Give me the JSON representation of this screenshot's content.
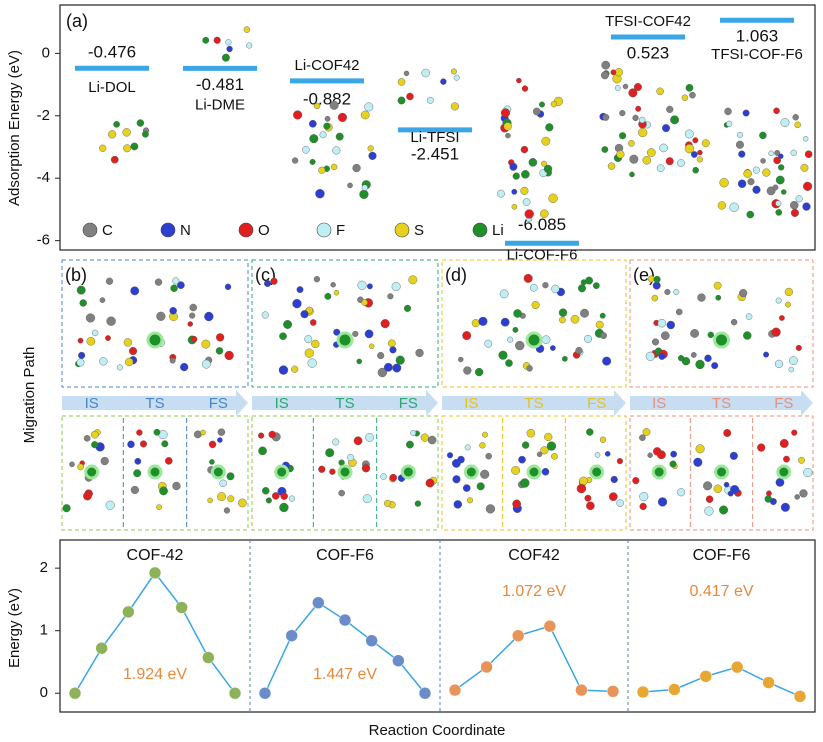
{
  "chart_data": [
    {
      "type": "level",
      "ylabel": "Adsorption Energy (eV)",
      "panel": "(a)",
      "categories": [
        "Li-DOL",
        "Li-DME",
        "Li-COF42",
        "Li-TFSI",
        "Li-COF-F6",
        "TFSI-COF42",
        "TFSI-COF-F6"
      ],
      "values": [
        -0.476,
        -0.481,
        -0.882,
        -2.451,
        -6.085,
        0.523,
        1.063
      ],
      "color": "#3aa6e6",
      "ylim": [
        -6.3,
        1.55
      ],
      "yticks": [
        0,
        -2,
        -4,
        -6
      ],
      "atoms": [
        {
          "name": "C",
          "color": "#808080"
        },
        {
          "name": "N",
          "color": "#2c3fd0"
        },
        {
          "name": "O",
          "color": "#e02020"
        },
        {
          "name": "F",
          "color": "#bfeef5"
        },
        {
          "name": "S",
          "color": "#e6d21e"
        },
        {
          "name": "Li",
          "color": "#1f8f2a"
        }
      ]
    },
    {
      "type": "line",
      "title": "COF-42",
      "annotation": "1.924 eV",
      "ylabel": "Energy (eV)",
      "values": [
        0,
        0.72,
        1.3,
        1.924,
        1.37,
        0.57,
        0
      ],
      "color": "#8db25a",
      "ylim": [
        -0.3,
        2.45
      ],
      "yticks": [
        0,
        1,
        2
      ]
    },
    {
      "type": "line",
      "title": "COF-F6",
      "annotation": "1.447 eV",
      "values": [
        0,
        0.92,
        1.447,
        1.17,
        0.84,
        0.52,
        0
      ],
      "color": "#6a8cc8",
      "ylim": [
        -0.3,
        2.45
      ]
    },
    {
      "type": "line",
      "title": "COF42",
      "annotation": "1.072 eV",
      "values": [
        0.05,
        0.42,
        0.92,
        1.072,
        0.05,
        0.03
      ],
      "color": "#e8935a",
      "ylim": [
        -0.3,
        2.45
      ]
    },
    {
      "type": "line",
      "title": "COF-F6",
      "annotation": "0.417 eV",
      "values": [
        0.02,
        0.06,
        0.27,
        0.417,
        0.17,
        -0.05
      ],
      "color": "#e8a733",
      "ylim": [
        -0.3,
        2.45
      ]
    }
  ],
  "figure": {
    "migration_label": "Migration Path",
    "xlabel": "Reaction Coordinate",
    "panels": [
      {
        "label": "(b)",
        "color": "#4a86c5",
        "stages": [
          "IS",
          "TS",
          "FS"
        ]
      },
      {
        "label": "(c)",
        "color": "#2aa870",
        "stages": [
          "IS",
          "TS",
          "FS"
        ]
      },
      {
        "label": "(d)",
        "color": "#e8c020",
        "stages": [
          "IS",
          "TS",
          "FS"
        ]
      },
      {
        "label": "(e)",
        "color": "#e8907a",
        "stages": [
          "IS",
          "TS",
          "FS"
        ]
      }
    ]
  }
}
